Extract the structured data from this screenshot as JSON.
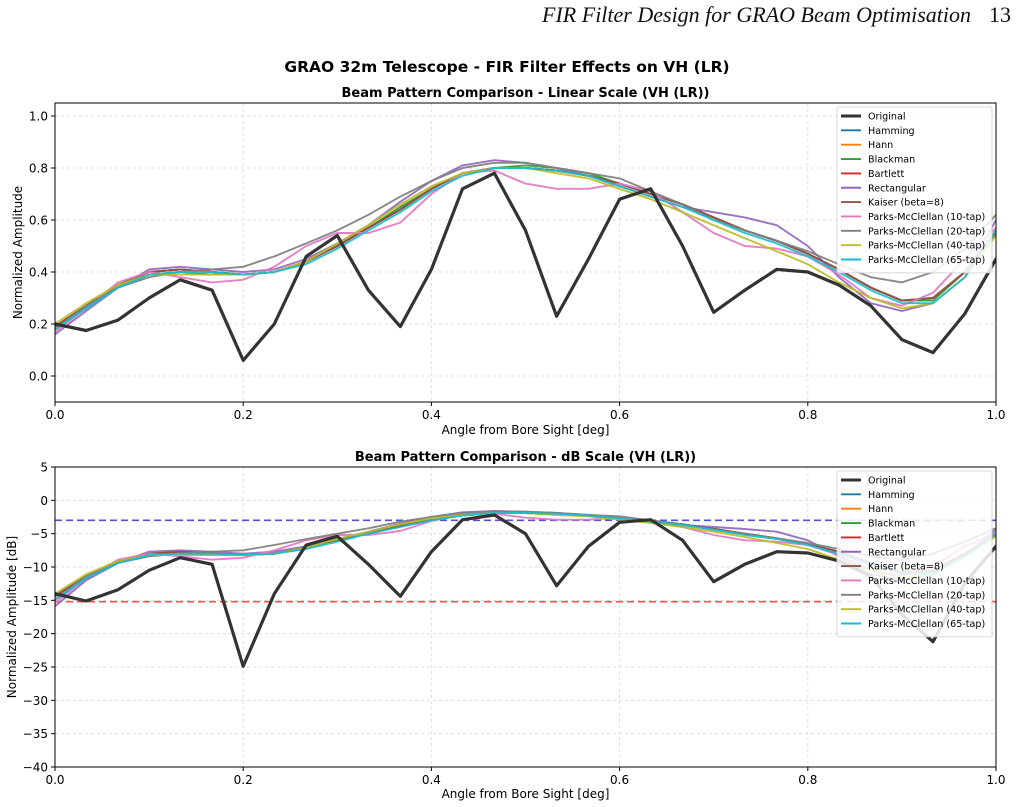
{
  "header": {
    "running_title": "FIR Filter Design for GRAO Beam Optimisation",
    "page_number": "13"
  },
  "figure": {
    "suptitle": "GRAO 32m Telescope - FIR Filter Effects on VH (LR)"
  },
  "colors": {
    "Original": "#333333",
    "Hamming": "#1f77b4",
    "Hann": "#ff7f0e",
    "Blackman": "#2ca02c",
    "Bartlett": "#d62728",
    "Rectangular": "#9467bd",
    "Kaiser (beta=8)": "#8c564b",
    "Parks-McClellan (10-tap)": "#e377c2",
    "Parks-McClellan (20-tap)": "#7f7f7f",
    "Parks-McClellan (40-tap)": "#bcbd22",
    "Parks-McClellan (65-tap)": "#17becf",
    "ref_blue": "#3333cc",
    "ref_red": "#ee3333"
  },
  "chart_data": [
    {
      "type": "line",
      "title": "Beam Pattern Comparison - Linear Scale (VH (LR))",
      "xlabel": "Angle from Bore Sight [deg]",
      "ylabel": "Normalized Amplitude",
      "xlim": [
        0,
        1
      ],
      "ylim": [
        -0.1,
        1.05
      ],
      "xticks": [
        0.0,
        0.2,
        0.4,
        0.6,
        0.8,
        1.0
      ],
      "xtick_labels": [
        "0.0",
        "0.2",
        "0.4",
        "0.6",
        "0.8",
        "1.0"
      ],
      "yticks": [
        0.0,
        0.2,
        0.4,
        0.6,
        0.8,
        1.0
      ],
      "ytick_labels": [
        "0.0",
        "0.2",
        "0.4",
        "0.6",
        "0.8",
        "1.0"
      ],
      "grid": true,
      "legend": "top-right",
      "x": [
        0.0,
        0.033,
        0.067,
        0.1,
        0.133,
        0.167,
        0.2,
        0.233,
        0.267,
        0.3,
        0.333,
        0.367,
        0.4,
        0.433,
        0.467,
        0.5,
        0.533,
        0.567,
        0.6,
        0.633,
        0.667,
        0.7,
        0.733,
        0.767,
        0.8,
        0.833,
        0.867,
        0.9,
        0.933,
        0.967,
        1.0
      ],
      "series": [
        {
          "name": "Original",
          "values": [
            0.2,
            0.175,
            0.215,
            0.3,
            0.37,
            0.33,
            0.06,
            0.2,
            0.46,
            0.54,
            0.33,
            0.19,
            0.41,
            0.72,
            0.78,
            0.56,
            0.23,
            0.45,
            0.68,
            0.72,
            0.5,
            0.245,
            0.33,
            0.41,
            0.4,
            0.35,
            0.27,
            0.14,
            0.09,
            0.24,
            0.45
          ]
        },
        {
          "name": "Hamming",
          "values": [
            0.19,
            0.27,
            0.35,
            0.4,
            0.41,
            0.4,
            0.39,
            0.4,
            0.44,
            0.5,
            0.57,
            0.64,
            0.72,
            0.78,
            0.8,
            0.8,
            0.79,
            0.77,
            0.74,
            0.7,
            0.66,
            0.61,
            0.56,
            0.52,
            0.47,
            0.41,
            0.34,
            0.29,
            0.3,
            0.4,
            0.55
          ]
        },
        {
          "name": "Hann",
          "values": [
            0.19,
            0.27,
            0.35,
            0.4,
            0.41,
            0.4,
            0.39,
            0.4,
            0.44,
            0.5,
            0.57,
            0.64,
            0.72,
            0.78,
            0.8,
            0.8,
            0.79,
            0.77,
            0.74,
            0.7,
            0.66,
            0.61,
            0.56,
            0.52,
            0.47,
            0.41,
            0.34,
            0.29,
            0.3,
            0.4,
            0.55
          ]
        },
        {
          "name": "Blackman",
          "values": [
            0.18,
            0.26,
            0.34,
            0.39,
            0.4,
            0.39,
            0.39,
            0.4,
            0.44,
            0.5,
            0.57,
            0.65,
            0.72,
            0.78,
            0.8,
            0.81,
            0.8,
            0.78,
            0.74,
            0.7,
            0.66,
            0.61,
            0.56,
            0.52,
            0.47,
            0.41,
            0.34,
            0.29,
            0.29,
            0.4,
            0.56
          ]
        },
        {
          "name": "Bartlett",
          "values": [
            0.19,
            0.27,
            0.35,
            0.4,
            0.41,
            0.4,
            0.39,
            0.4,
            0.44,
            0.5,
            0.57,
            0.64,
            0.72,
            0.78,
            0.8,
            0.8,
            0.79,
            0.77,
            0.74,
            0.7,
            0.66,
            0.61,
            0.56,
            0.52,
            0.47,
            0.41,
            0.34,
            0.29,
            0.3,
            0.4,
            0.55
          ]
        },
        {
          "name": "Rectangular",
          "values": [
            0.16,
            0.25,
            0.34,
            0.41,
            0.42,
            0.41,
            0.4,
            0.41,
            0.45,
            0.51,
            0.58,
            0.67,
            0.75,
            0.81,
            0.83,
            0.82,
            0.8,
            0.77,
            0.73,
            0.69,
            0.65,
            0.63,
            0.61,
            0.58,
            0.5,
            0.38,
            0.28,
            0.25,
            0.28,
            0.38,
            0.6
          ]
        },
        {
          "name": "Kaiser (beta=8)",
          "values": [
            0.19,
            0.27,
            0.35,
            0.4,
            0.41,
            0.4,
            0.39,
            0.4,
            0.44,
            0.5,
            0.57,
            0.64,
            0.72,
            0.78,
            0.8,
            0.8,
            0.79,
            0.77,
            0.74,
            0.7,
            0.66,
            0.61,
            0.56,
            0.52,
            0.47,
            0.41,
            0.34,
            0.29,
            0.3,
            0.4,
            0.55
          ]
        },
        {
          "name": "Parks-McClellan (10-tap)",
          "values": [
            0.17,
            0.26,
            0.36,
            0.4,
            0.38,
            0.36,
            0.37,
            0.42,
            0.5,
            0.55,
            0.55,
            0.59,
            0.7,
            0.78,
            0.79,
            0.74,
            0.72,
            0.72,
            0.74,
            0.71,
            0.63,
            0.55,
            0.5,
            0.49,
            0.46,
            0.39,
            0.3,
            0.27,
            0.32,
            0.45,
            0.57
          ]
        },
        {
          "name": "Parks-McClellan (20-tap)",
          "values": [
            0.18,
            0.27,
            0.34,
            0.38,
            0.4,
            0.41,
            0.42,
            0.46,
            0.51,
            0.56,
            0.62,
            0.69,
            0.75,
            0.8,
            0.82,
            0.82,
            0.8,
            0.78,
            0.76,
            0.71,
            0.66,
            0.6,
            0.56,
            0.52,
            0.48,
            0.43,
            0.38,
            0.36,
            0.4,
            0.49,
            0.62
          ]
        },
        {
          "name": "Parks-McClellan (40-tap)",
          "values": [
            0.2,
            0.28,
            0.35,
            0.39,
            0.39,
            0.39,
            0.39,
            0.4,
            0.44,
            0.51,
            0.58,
            0.66,
            0.73,
            0.78,
            0.8,
            0.8,
            0.78,
            0.76,
            0.72,
            0.68,
            0.63,
            0.58,
            0.53,
            0.48,
            0.43,
            0.36,
            0.3,
            0.26,
            0.28,
            0.38,
            0.54
          ]
        },
        {
          "name": "Parks-McClellan (65-tap)",
          "values": [
            0.18,
            0.26,
            0.34,
            0.39,
            0.4,
            0.4,
            0.39,
            0.4,
            0.43,
            0.49,
            0.56,
            0.63,
            0.71,
            0.77,
            0.8,
            0.8,
            0.79,
            0.77,
            0.73,
            0.69,
            0.65,
            0.6,
            0.55,
            0.51,
            0.46,
            0.4,
            0.33,
            0.28,
            0.28,
            0.38,
            0.56
          ]
        }
      ]
    },
    {
      "type": "line",
      "title": "Beam Pattern Comparison - dB Scale (VH (LR))",
      "xlabel": "Angle from Bore Sight [deg]",
      "ylabel": "Normalized Amplitude [dB]",
      "xlim": [
        0,
        1
      ],
      "ylim": [
        -40,
        5
      ],
      "xticks": [
        0.0,
        0.2,
        0.4,
        0.6,
        0.8,
        1.0
      ],
      "xtick_labels": [
        "0.0",
        "0.2",
        "0.4",
        "0.6",
        "0.8",
        "1.0"
      ],
      "yticks": [
        5,
        0,
        -5,
        -10,
        -15,
        -20,
        -25,
        -30,
        -35,
        -40
      ],
      "ytick_labels": [
        "5",
        "0",
        "−5",
        "−10",
        "−15",
        "−20",
        "−25",
        "−30",
        "−35",
        "−40"
      ],
      "grid": true,
      "legend": "top-right",
      "reference_lines": [
        {
          "y": -3,
          "style": "dashed",
          "color": "#3333cc"
        },
        {
          "y": -15.2,
          "style": "dashed",
          "color": "#ee3333"
        }
      ],
      "x": [
        0.0,
        0.033,
        0.067,
        0.1,
        0.133,
        0.167,
        0.2,
        0.233,
        0.267,
        0.3,
        0.333,
        0.367,
        0.4,
        0.433,
        0.467,
        0.5,
        0.533,
        0.567,
        0.6,
        0.633,
        0.667,
        0.7,
        0.733,
        0.767,
        0.8,
        0.833,
        0.867,
        0.9,
        0.933,
        0.967,
        1.0
      ],
      "series": [
        {
          "name": "Original",
          "values": [
            -14.0,
            -15.1,
            -13.4,
            -10.5,
            -8.6,
            -9.6,
            -24.9,
            -14.0,
            -6.7,
            -5.4,
            -9.6,
            -14.4,
            -7.7,
            -2.9,
            -2.2,
            -5.0,
            -12.8,
            -6.9,
            -3.3,
            -2.9,
            -6.0,
            -12.2,
            -9.6,
            -7.7,
            -7.9,
            -9.1,
            -11.4,
            -17.1,
            -21.2,
            -12.4,
            -6.9
          ]
        },
        {
          "name": "Hamming",
          "values": [
            -14.4,
            -11.4,
            -9.1,
            -8.0,
            -7.7,
            -8.0,
            -8.2,
            -8.0,
            -7.1,
            -6.0,
            -4.9,
            -3.9,
            -2.9,
            -2.2,
            -1.9,
            -1.9,
            -2.0,
            -2.3,
            -2.6,
            -3.1,
            -3.6,
            -4.3,
            -5.0,
            -5.7,
            -6.6,
            -7.7,
            -9.4,
            -10.8,
            -10.5,
            -8.0,
            -5.2
          ]
        },
        {
          "name": "Hann",
          "values": [
            -14.4,
            -11.4,
            -9.1,
            -8.0,
            -7.7,
            -8.0,
            -8.2,
            -8.0,
            -7.1,
            -6.0,
            -4.9,
            -3.9,
            -2.9,
            -2.2,
            -1.9,
            -1.9,
            -2.0,
            -2.3,
            -2.6,
            -3.1,
            -3.6,
            -4.3,
            -5.0,
            -5.7,
            -6.6,
            -7.7,
            -9.4,
            -10.8,
            -10.5,
            -8.0,
            -5.2
          ]
        },
        {
          "name": "Blackman",
          "values": [
            -14.9,
            -11.7,
            -9.4,
            -8.2,
            -8.0,
            -8.2,
            -8.2,
            -8.0,
            -7.1,
            -6.0,
            -4.9,
            -3.7,
            -2.9,
            -2.2,
            -1.9,
            -1.8,
            -1.9,
            -2.2,
            -2.6,
            -3.1,
            -3.6,
            -4.3,
            -5.0,
            -5.7,
            -6.6,
            -7.7,
            -9.4,
            -10.8,
            -10.8,
            -8.0,
            -5.0
          ]
        },
        {
          "name": "Bartlett",
          "values": [
            -14.4,
            -11.4,
            -9.1,
            -8.0,
            -7.7,
            -8.0,
            -8.2,
            -8.0,
            -7.1,
            -6.0,
            -4.9,
            -3.9,
            -2.9,
            -2.2,
            -1.9,
            -1.9,
            -2.0,
            -2.3,
            -2.6,
            -3.1,
            -3.6,
            -4.3,
            -5.0,
            -5.7,
            -6.6,
            -7.7,
            -9.4,
            -10.8,
            -10.5,
            -8.0,
            -5.2
          ]
        },
        {
          "name": "Rectangular",
          "values": [
            -15.9,
            -12.0,
            -9.4,
            -7.7,
            -7.5,
            -7.7,
            -8.0,
            -7.7,
            -6.9,
            -5.8,
            -4.7,
            -3.5,
            -2.5,
            -1.8,
            -1.6,
            -1.7,
            -1.9,
            -2.3,
            -2.7,
            -3.2,
            -3.7,
            -4.0,
            -4.3,
            -4.7,
            -6.0,
            -8.4,
            -11.1,
            -12.0,
            -11.1,
            -8.4,
            -4.4
          ]
        },
        {
          "name": "Kaiser (beta=8)",
          "values": [
            -14.4,
            -11.4,
            -9.1,
            -8.0,
            -7.7,
            -8.0,
            -8.2,
            -8.0,
            -7.1,
            -6.0,
            -4.9,
            -3.9,
            -2.9,
            -2.2,
            -1.9,
            -1.9,
            -2.0,
            -2.3,
            -2.6,
            -3.1,
            -3.6,
            -4.3,
            -5.0,
            -5.7,
            -6.6,
            -7.7,
            -9.4,
            -10.8,
            -10.5,
            -8.0,
            -5.2
          ]
        },
        {
          "name": "Parks-McClellan (10-tap)",
          "values": [
            -15.4,
            -11.7,
            -8.9,
            -8.0,
            -8.4,
            -8.9,
            -8.6,
            -7.5,
            -6.0,
            -5.2,
            -5.2,
            -4.6,
            -3.1,
            -2.2,
            -2.0,
            -2.6,
            -2.9,
            -2.9,
            -2.6,
            -3.0,
            -4.0,
            -5.2,
            -6.0,
            -6.2,
            -6.7,
            -8.2,
            -10.5,
            -11.4,
            -9.9,
            -6.9,
            -4.9
          ]
        },
        {
          "name": "Parks-McClellan (20-tap)",
          "values": [
            -14.9,
            -11.4,
            -9.4,
            -8.4,
            -8.0,
            -7.7,
            -7.5,
            -6.7,
            -5.8,
            -5.0,
            -4.2,
            -3.2,
            -2.5,
            -1.9,
            -1.7,
            -1.7,
            -1.9,
            -2.2,
            -2.4,
            -3.0,
            -3.6,
            -4.4,
            -5.0,
            -5.7,
            -6.4,
            -7.3,
            -8.4,
            -8.9,
            -8.0,
            -6.2,
            -4.2
          ]
        },
        {
          "name": "Parks-McClellan (40-tap)",
          "values": [
            -14.0,
            -11.1,
            -9.1,
            -8.2,
            -8.2,
            -8.2,
            -8.2,
            -8.0,
            -7.1,
            -5.8,
            -4.7,
            -3.6,
            -2.7,
            -2.2,
            -1.9,
            -1.9,
            -2.2,
            -2.4,
            -2.9,
            -3.4,
            -4.0,
            -4.7,
            -5.5,
            -6.4,
            -7.3,
            -8.9,
            -10.5,
            -11.7,
            -11.1,
            -8.4,
            -5.4
          ]
        },
        {
          "name": "Parks-McClellan (65-tap)",
          "values": [
            -14.9,
            -11.7,
            -9.4,
            -8.2,
            -8.0,
            -8.0,
            -8.2,
            -8.0,
            -7.3,
            -6.2,
            -5.0,
            -4.0,
            -3.0,
            -2.3,
            -1.9,
            -1.9,
            -2.0,
            -2.3,
            -2.7,
            -3.2,
            -3.7,
            -4.4,
            -5.2,
            -5.8,
            -6.7,
            -8.0,
            -9.6,
            -11.1,
            -11.1,
            -8.4,
            -5.0
          ]
        }
      ]
    }
  ]
}
